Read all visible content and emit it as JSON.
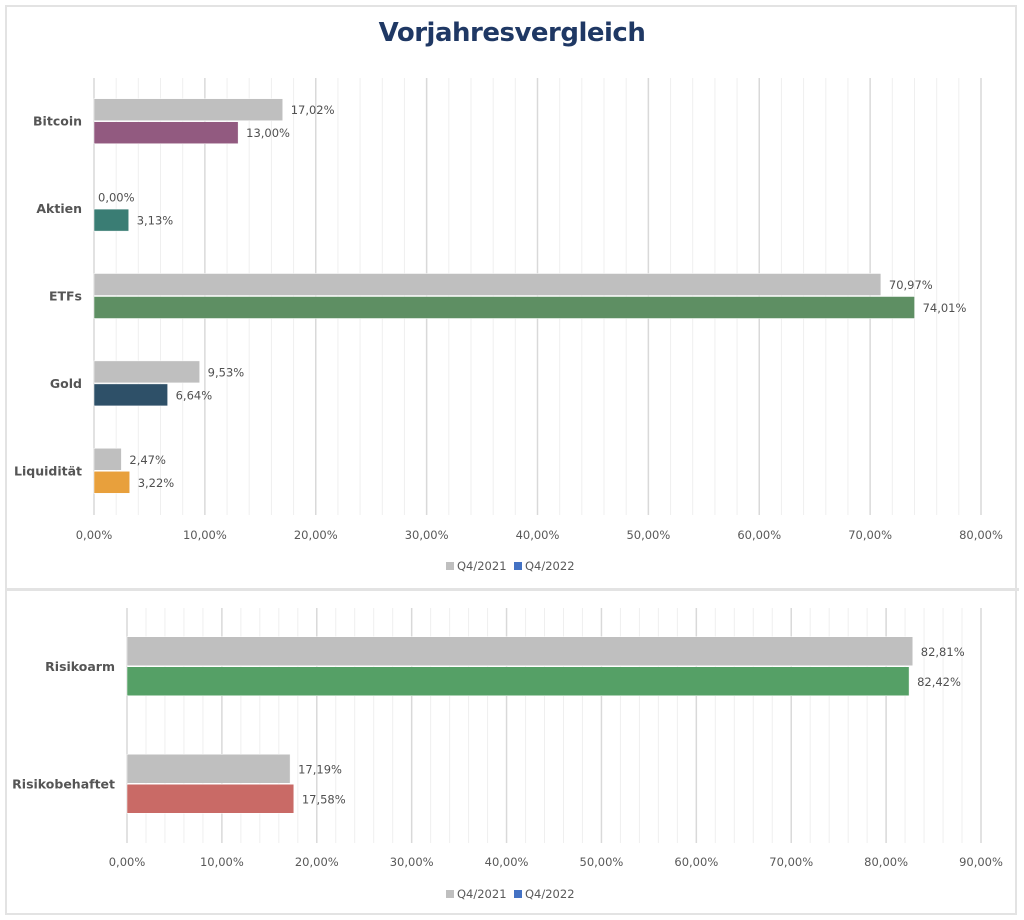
{
  "page_title": "Vorjahresvergleich",
  "colors": {
    "title": "#1f3864",
    "q4_2021": "#bfbfbf",
    "q4_2022_legend": "#4472c4",
    "gridline_major": "#d9d9d9",
    "gridline_minor": "#efefef"
  },
  "chart_data": [
    {
      "type": "bar",
      "orientation": "horizontal",
      "title": "Vorjahresvergleich",
      "categories": [
        "Bitcoin",
        "Aktien",
        "ETFs",
        "Gold",
        "Liquidität"
      ],
      "series": [
        {
          "name": "Q4/2021",
          "values": [
            17.02,
            0.0,
            70.97,
            9.53,
            2.47
          ],
          "labels": [
            "17,02%",
            "0,00%",
            "70,97%",
            "9,53%",
            "2,47%"
          ],
          "colors": [
            "#bfbfbf",
            "#bfbfbf",
            "#bfbfbf",
            "#bfbfbf",
            "#bfbfbf"
          ]
        },
        {
          "name": "Q4/2022",
          "values": [
            13.0,
            3.13,
            74.01,
            6.64,
            3.22
          ],
          "labels": [
            "13,00%",
            "3,13%",
            "74,01%",
            "6,64%",
            "3,22%"
          ],
          "colors": [
            "#925a80",
            "#3a7d74",
            "#5e8f63",
            "#2e5068",
            "#e8a03c"
          ]
        }
      ],
      "xlim": [
        0,
        80
      ],
      "xticks": [
        0,
        10,
        20,
        30,
        40,
        50,
        60,
        70,
        80
      ],
      "xtick_labels": [
        "0,00%",
        "10,00%",
        "20,00%",
        "30,00%",
        "40,00%",
        "50,00%",
        "60,00%",
        "70,00%",
        "80,00%"
      ],
      "minor_grid_step": 2,
      "grid": true,
      "legend": {
        "position": "bottom",
        "entries": [
          {
            "label": "Q4/2021",
            "color": "#bfbfbf"
          },
          {
            "label": "Q4/2022",
            "color": "#4472c4"
          }
        ]
      }
    },
    {
      "type": "bar",
      "orientation": "horizontal",
      "title": "",
      "categories": [
        "Risikoarm",
        "Risikobehaftet"
      ],
      "series": [
        {
          "name": "Q4/2021",
          "values": [
            82.81,
            17.19
          ],
          "labels": [
            "82,81%",
            "17,19%"
          ],
          "colors": [
            "#bfbfbf",
            "#bfbfbf"
          ]
        },
        {
          "name": "Q4/2022",
          "values": [
            82.42,
            17.58
          ],
          "labels": [
            "82,42%",
            "17,58%"
          ],
          "colors": [
            "#55a066",
            "#c96a66"
          ]
        }
      ],
      "xlim": [
        0,
        90
      ],
      "xticks": [
        0,
        10,
        20,
        30,
        40,
        50,
        60,
        70,
        80,
        90
      ],
      "xtick_labels": [
        "0,00%",
        "10,00%",
        "20,00%",
        "30,00%",
        "40,00%",
        "50,00%",
        "60,00%",
        "70,00%",
        "80,00%",
        "90,00%"
      ],
      "minor_grid_step": 2,
      "grid": true,
      "legend": {
        "position": "bottom",
        "entries": [
          {
            "label": "Q4/2021",
            "color": "#bfbfbf"
          },
          {
            "label": "Q4/2022",
            "color": "#4472c4"
          }
        ]
      }
    }
  ]
}
